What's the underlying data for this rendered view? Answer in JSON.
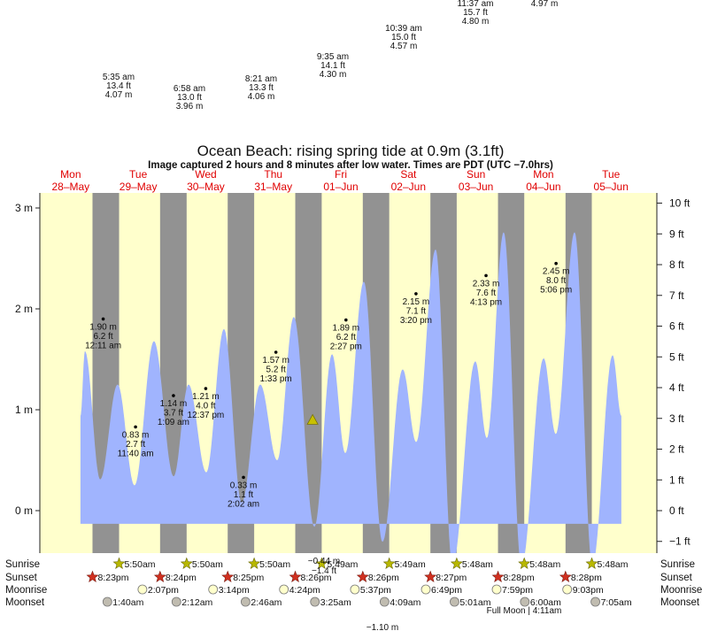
{
  "chart_data": {
    "type": "area",
    "title": "Ocean Beach: rising  spring tide at 0.9m (3.1ft)",
    "subtitle": "Image captured 2 hours and 8 minutes after low water. Times are PDT (UTC −7.0hrs)",
    "colors": {
      "day": "#ffffcc",
      "night": "#929292",
      "water": "#a0b4fe",
      "dayLabel": "#e00000",
      "sunrise": "#b8b800",
      "sunset": "#d03020",
      "moonrise": "#ffffcc",
      "moonset": "#c0bcb0"
    },
    "days": [
      {
        "name": "Mon",
        "date": "28–May"
      },
      {
        "name": "Tue",
        "date": "29–May"
      },
      {
        "name": "Wed",
        "date": "30–May"
      },
      {
        "name": "Thu",
        "date": "31–May"
      },
      {
        "name": "Fri",
        "date": "01–Jun"
      },
      {
        "name": "Sat",
        "date": "02–Jun"
      },
      {
        "name": "Sun",
        "date": "03–Jun"
      },
      {
        "name": "Mon",
        "date": "04–Jun"
      },
      {
        "name": "Tue",
        "date": "05–Jun"
      }
    ],
    "xlim_hours": [
      1.6,
      221
    ],
    "ylim_m": [
      -0.42,
      3.15
    ],
    "y_left_ticks": [
      {
        "v": 0,
        "label": "0 m"
      },
      {
        "v": 1,
        "label": "1 m"
      },
      {
        "v": 2,
        "label": "2 m"
      },
      {
        "v": 3,
        "label": "3 m"
      }
    ],
    "y_right_ticks": [
      {
        "v": -1,
        "label": "−1 ft"
      },
      {
        "v": 0,
        "label": "0 ft"
      },
      {
        "v": 1,
        "label": "1 ft"
      },
      {
        "v": 2,
        "label": "2 ft"
      },
      {
        "v": 3,
        "label": "3 ft"
      },
      {
        "v": 4,
        "label": "4 ft"
      },
      {
        "v": 5,
        "label": "5 ft"
      },
      {
        "v": 6,
        "label": "6 ft"
      },
      {
        "v": 7,
        "label": "7 ft"
      },
      {
        "v": 8,
        "label": "8 ft"
      },
      {
        "v": 9,
        "label": "9 ft"
      },
      {
        "v": 10,
        "label": "10 ft"
      }
    ],
    "tide_curve_hours_m": [
      [
        16.1,
        0.94
      ],
      [
        17.7,
        1.58
      ],
      [
        23.1,
        0.31
      ],
      [
        29.3,
        1.25
      ],
      [
        35.3,
        0.25
      ],
      [
        42.2,
        1.68
      ],
      [
        49.2,
        0.34
      ],
      [
        54.5,
        1.25
      ],
      [
        60.8,
        0.38
      ],
      [
        67.1,
        1.8
      ],
      [
        73.4,
        0.08
      ],
      [
        80.0,
        1.25
      ],
      [
        86.0,
        0.5
      ],
      [
        91.9,
        1.92
      ],
      [
        99.2,
        -0.16
      ],
      [
        105.5,
        1.55
      ],
      [
        110.2,
        0.57
      ],
      [
        116.8,
        2.27
      ],
      [
        123.4,
        -0.31
      ],
      [
        130.6,
        1.4
      ],
      [
        135.4,
        0.68
      ],
      [
        142.3,
        2.59
      ],
      [
        148.3,
        -0.55
      ],
      [
        156.4,
        1.48
      ],
      [
        160.5,
        0.72
      ],
      [
        166.5,
        2.76
      ],
      [
        172.8,
        -0.55
      ],
      [
        180.7,
        1.51
      ],
      [
        185.0,
        0.76
      ],
      [
        191.7,
        2.76
      ],
      [
        198.0,
        -0.55
      ],
      [
        205.2,
        1.54
      ],
      [
        208.3,
        0.94
      ]
    ],
    "current": {
      "hours": 98.6,
      "m": 0.9
    },
    "tide_labels": [
      {
        "h": 24.18,
        "m": 1.9,
        "l1": "1.90 m",
        "l2": "6.2 ft",
        "l3": "12:11 am"
      },
      {
        "h": 35.67,
        "m": 0.83,
        "l1": "0.83 m",
        "l2": "2.7 ft",
        "l3": "11:40 am"
      },
      {
        "h": 49.15,
        "m": 1.14,
        "l1": "1.14 m",
        "l2": "3.7 ft",
        "l3": "1:09 am"
      },
      {
        "h": 60.62,
        "m": 1.21,
        "l1": "1.21 m",
        "l2": "4.0 ft",
        "l3": "12:37 pm"
      },
      {
        "h": 74.03,
        "m": 0.33,
        "l1": "0.33 m",
        "l2": "1.1 ft",
        "l3": "2:02 am"
      },
      {
        "h": 85.55,
        "m": 1.57,
        "l1": "1.57 m",
        "l2": "5.2 ft",
        "l3": "1:33 pm"
      },
      {
        "h": 110.45,
        "m": 1.89,
        "l1": "1.89 m",
        "l2": "6.2 ft",
        "l3": "2:27 pm"
      },
      {
        "h": 135.33,
        "m": 2.15,
        "l1": "2.15 m",
        "l2": "7.1 ft",
        "l3": "3:20 pm"
      },
      {
        "h": 160.22,
        "m": 2.33,
        "l1": "2.33 m",
        "l2": "7.6 ft",
        "l3": "4:13 pm"
      },
      {
        "h": 185.1,
        "m": 2.45,
        "l1": "2.45 m",
        "l2": "8.0 ft",
        "l3": "5:06 pm"
      }
    ],
    "top_labels": [
      {
        "time": "5:35 am",
        "ft": "13.4 ft",
        "m": "4.07 m"
      },
      {
        "time": "6:58 am",
        "ft": "13.0 ft",
        "m": "3.96 m"
      },
      {
        "time": "8:21 am",
        "ft": "13.3 ft",
        "m": "4.06 m"
      },
      {
        "time": "9:35 am",
        "ft": "14.1 ft",
        "m": "4.30 m"
      },
      {
        "time": "10:39 am",
        "ft": "15.0 ft",
        "m": "4.57 m"
      },
      {
        "time": "11:37 am",
        "ft": "15.7 ft",
        "m": "4.80 m"
      },
      {
        "m": "4.97 m"
      }
    ],
    "low_extra": {
      "l1": "−0.44 m",
      "l2": "−1.4 ft",
      "bottom": "−1.10 m"
    },
    "rows": {
      "labels": [
        "Sunrise",
        "Sunset",
        "Moonrise",
        "Moonset"
      ],
      "sunrise": [
        {
          "h": 29.83,
          "t": "5:50am"
        },
        {
          "h": 53.83,
          "t": "5:50am"
        },
        {
          "h": 77.83,
          "t": "5:50am"
        },
        {
          "h": 101.82,
          "t": "5:49am"
        },
        {
          "h": 125.82,
          "t": "5:49am"
        },
        {
          "h": 149.8,
          "t": "5:48am"
        },
        {
          "h": 173.8,
          "t": "5:48am"
        },
        {
          "h": 197.8,
          "t": "5:48am"
        }
      ],
      "sunset": [
        {
          "h": 20.38,
          "t": "8:23pm"
        },
        {
          "h": 44.4,
          "t": "8:24pm"
        },
        {
          "h": 68.42,
          "t": "8:25pm"
        },
        {
          "h": 92.43,
          "t": "8:26pm"
        },
        {
          "h": 116.43,
          "t": "8:26pm"
        },
        {
          "h": 140.45,
          "t": "8:27pm"
        },
        {
          "h": 164.47,
          "t": "8:28pm"
        },
        {
          "h": 188.47,
          "t": "8:28pm"
        }
      ],
      "moonrise": [
        {
          "h": 38.12,
          "t": "2:07pm"
        },
        {
          "h": 63.23,
          "t": "3:14pm"
        },
        {
          "h": 88.4,
          "t": "4:24pm"
        },
        {
          "h": 113.62,
          "t": "5:37pm"
        },
        {
          "h": 138.82,
          "t": "6:49pm"
        },
        {
          "h": 163.98,
          "t": "7:59pm"
        },
        {
          "h": 189.05,
          "t": "9:03pm"
        }
      ],
      "moonset": [
        {
          "h": 25.67,
          "t": "1:40am"
        },
        {
          "h": 50.2,
          "t": "2:12am"
        },
        {
          "h": 74.77,
          "t": "2:46am"
        },
        {
          "h": 99.42,
          "t": "3:25am"
        },
        {
          "h": 124.15,
          "t": "4:09am"
        },
        {
          "h": 149.02,
          "t": "5:01am"
        },
        {
          "h": 174.0,
          "t": "6:00am"
        },
        {
          "h": 199.08,
          "t": "7:05am"
        }
      ],
      "full_moon": "Full Moon | 4:11am"
    }
  }
}
